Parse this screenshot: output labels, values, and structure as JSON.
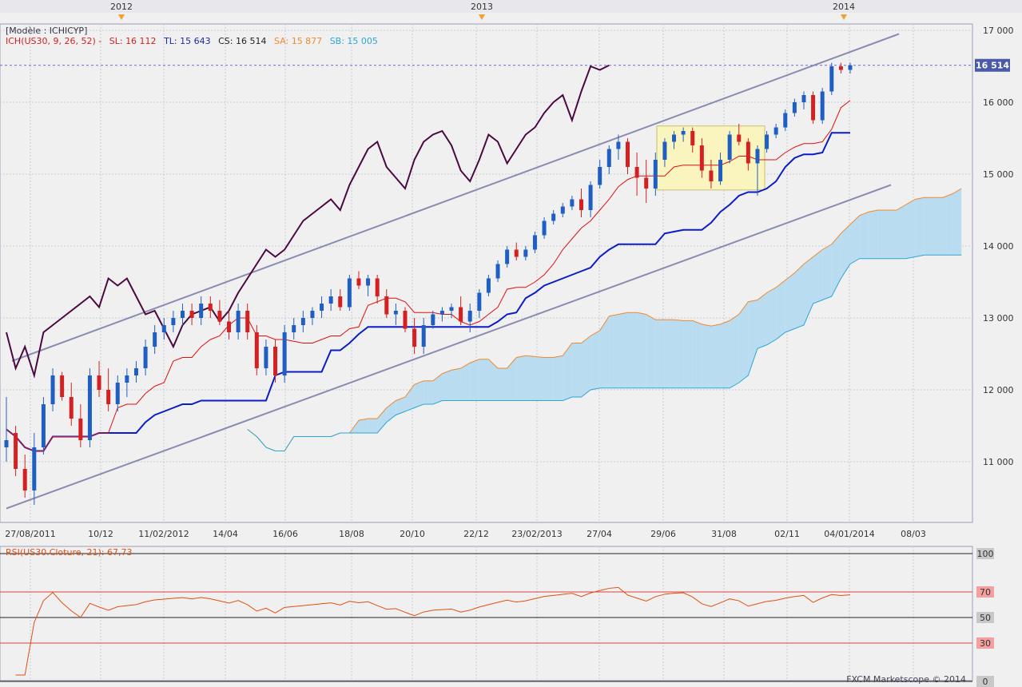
{
  "header": {
    "model_label": "[Modèle : ICHICYP]",
    "ich_label": "ICH(US30, 9, 26, 52) -",
    "sl_label": "SL: 16 112",
    "tl_label": "TL: 15 643",
    "cs_label": "CS: 16 514",
    "sa_label": "SA: 15 877",
    "sb_label": "SB: 15 005"
  },
  "rsi_label": "RSI(US30.Cloture, 21): 67,73",
  "copyright": "FXCM Marketscope © 2014",
  "colors": {
    "background": "#f0f0f0",
    "grid": "#c8ccd6",
    "bull": "#1f5fc4",
    "bear": "#d42020",
    "tenkan": "#e01010",
    "kijun": "#0a1cc8",
    "chikou": "#4a0a40",
    "senkou_a": "#f08a30",
    "senkou_b": "#2aa8d8",
    "cloud_bull": "#b9dcf0",
    "cloud_bear": "#f5c8a4",
    "channel": "#8a8cb0",
    "rsi_line": "#e05010",
    "rsi_levels": "#e04040",
    "price_tag": "#4a5aa8"
  },
  "chart_data": [
    {
      "type": "candlestick",
      "instrument": "US30",
      "y_ticks": [
        11000,
        12000,
        13000,
        14000,
        15000,
        16000,
        17000
      ],
      "y_tick_labels": [
        "11 000",
        "12 000",
        "13 000",
        "14 000",
        "15 000",
        "16 000",
        "17 000"
      ],
      "ylim": [
        10300,
        17150
      ],
      "x_date_labels": [
        "27/08/2011",
        "10/12",
        "11/02/2012",
        "14/04",
        "16/06",
        "18/08",
        "20/10",
        "22/12",
        "23/02/2013",
        "27/04",
        "29/06",
        "31/08",
        "02/11",
        "04/01/2014",
        "08/03"
      ],
      "year_markers": [
        "2012",
        "2013",
        "2014"
      ],
      "current_price_label": "16 514",
      "current_price": 16514,
      "candles_weekly_ohlc": [
        [
          11200,
          11900,
          11000,
          11300
        ],
        [
          11400,
          11500,
          10800,
          10900
        ],
        [
          10900,
          11100,
          10500,
          10600
        ],
        [
          10600,
          11400,
          10400,
          11200
        ],
        [
          11200,
          11900,
          11100,
          11800
        ],
        [
          11800,
          12300,
          11700,
          12200
        ],
        [
          12200,
          12250,
          11850,
          11900
        ],
        [
          11900,
          12100,
          11500,
          11600
        ],
        [
          11600,
          11800,
          11200,
          11300
        ],
        [
          11300,
          12300,
          11200,
          12200
        ],
        [
          12200,
          12400,
          11900,
          12000
        ],
        [
          12000,
          12300,
          11700,
          11800
        ],
        [
          11800,
          12200,
          11700,
          12100
        ],
        [
          12100,
          12300,
          11900,
          12200
        ],
        [
          12200,
          12400,
          12100,
          12300
        ],
        [
          12300,
          12700,
          12200,
          12600
        ],
        [
          12600,
          12900,
          12500,
          12800
        ],
        [
          12800,
          13000,
          12700,
          12900
        ],
        [
          12900,
          13100,
          12800,
          13000
        ],
        [
          13000,
          13200,
          12900,
          13100
        ],
        [
          13100,
          13200,
          12900,
          13000
        ],
        [
          13000,
          13300,
          12900,
          13200
        ],
        [
          13200,
          13300,
          13000,
          13100
        ],
        [
          13100,
          13250,
          12900,
          12950
        ],
        [
          12950,
          13100,
          12700,
          12800
        ],
        [
          12800,
          13200,
          12700,
          13100
        ],
        [
          13100,
          13200,
          12700,
          12800
        ],
        [
          12800,
          12900,
          12200,
          12300
        ],
        [
          12300,
          12700,
          12200,
          12600
        ],
        [
          12600,
          12700,
          12100,
          12200
        ],
        [
          12200,
          12900,
          12100,
          12800
        ],
        [
          12800,
          13000,
          12700,
          12900
        ],
        [
          12900,
          13100,
          12800,
          13000
        ],
        [
          13000,
          13150,
          12900,
          13100
        ],
        [
          13100,
          13300,
          13000,
          13200
        ],
        [
          13200,
          13400,
          13100,
          13300
        ],
        [
          13300,
          13400,
          13100,
          13150
        ],
        [
          13150,
          13600,
          13100,
          13550
        ],
        [
          13550,
          13650,
          13400,
          13450
        ],
        [
          13450,
          13600,
          13300,
          13550
        ],
        [
          13550,
          13600,
          13200,
          13300
        ],
        [
          13300,
          13400,
          13000,
          13050
        ],
        [
          13050,
          13200,
          12900,
          13100
        ],
        [
          13100,
          13150,
          12800,
          12850
        ],
        [
          12850,
          13000,
          12500,
          12600
        ],
        [
          12600,
          13000,
          12500,
          12900
        ],
        [
          12900,
          13100,
          12850,
          13050
        ],
        [
          13050,
          13150,
          12950,
          13100
        ],
        [
          13100,
          13200,
          13000,
          13150
        ],
        [
          13150,
          13300,
          12900,
          12950
        ],
        [
          12950,
          13200,
          12800,
          13100
        ],
        [
          13100,
          13400,
          13000,
          13350
        ],
        [
          13350,
          13600,
          13300,
          13550
        ],
        [
          13550,
          13800,
          13500,
          13750
        ],
        [
          13750,
          14000,
          13700,
          13950
        ],
        [
          13950,
          14050,
          13800,
          13850
        ],
        [
          13850,
          14000,
          13800,
          13950
        ],
        [
          13950,
          14200,
          13900,
          14150
        ],
        [
          14150,
          14400,
          14100,
          14350
        ],
        [
          14350,
          14500,
          14300,
          14450
        ],
        [
          14450,
          14600,
          14400,
          14550
        ],
        [
          14550,
          14700,
          14500,
          14650
        ],
        [
          14650,
          14800,
          14400,
          14500
        ],
        [
          14500,
          14900,
          14400,
          14850
        ],
        [
          14850,
          15200,
          14800,
          15100
        ],
        [
          15100,
          15400,
          15000,
          15350
        ],
        [
          15350,
          15550,
          15200,
          15450
        ],
        [
          15450,
          15500,
          15000,
          15100
        ],
        [
          15100,
          15300,
          14700,
          14950
        ],
        [
          14950,
          15200,
          14600,
          14800
        ],
        [
          14800,
          15300,
          14700,
          15200
        ],
        [
          15200,
          15500,
          15100,
          15450
        ],
        [
          15450,
          15600,
          15350,
          15550
        ],
        [
          15550,
          15650,
          15450,
          15600
        ],
        [
          15600,
          15650,
          15300,
          15400
        ],
        [
          15400,
          15500,
          14950,
          15050
        ],
        [
          15050,
          15200,
          14800,
          14900
        ],
        [
          14900,
          15300,
          14850,
          15200
        ],
        [
          15200,
          15600,
          15150,
          15550
        ],
        [
          15550,
          15700,
          15400,
          15450
        ],
        [
          15450,
          15500,
          15050,
          15150
        ],
        [
          15150,
          15400,
          14700,
          15350
        ],
        [
          15350,
          15600,
          15300,
          15550
        ],
        [
          15550,
          15700,
          15500,
          15650
        ],
        [
          15650,
          15900,
          15600,
          15850
        ],
        [
          15850,
          16050,
          15800,
          16000
        ],
        [
          16000,
          16150,
          15900,
          16100
        ],
        [
          16100,
          16150,
          15700,
          15750
        ],
        [
          15750,
          16200,
          15700,
          16150
        ],
        [
          16150,
          16550,
          16100,
          16500
        ],
        [
          16500,
          16550,
          16400,
          16450
        ],
        [
          16450,
          16550,
          16400,
          16514
        ]
      ],
      "channel_lines": [
        {
          "name": "upper",
          "from": [
            "27/08/2011",
            12400
          ],
          "to": [
            "2014",
            16950
          ]
        },
        {
          "name": "lower",
          "from": [
            "27/08/2011",
            10350
          ],
          "to": [
            "2014",
            14850
          ]
        }
      ],
      "horizontal_level": 16514,
      "consolidation_box": {
        "from": "29/06",
        "to": "02/11",
        "low": 14780,
        "high": 15670
      },
      "ichimoku": {
        "tenkan_sen_last": 16112,
        "kijun_sen_last": 15643,
        "chikou_span_last": 16514,
        "senkou_span_a_last": 15877,
        "senkou_span_b_last": 15005
      }
    },
    {
      "type": "line",
      "name": "RSI(US30.Cloture, 21)",
      "last_value": 67.73,
      "y_ticks": [
        0,
        30,
        50,
        70,
        100
      ],
      "ylim": [
        0,
        100
      ],
      "levels": [
        30,
        50,
        70
      ]
    }
  ]
}
